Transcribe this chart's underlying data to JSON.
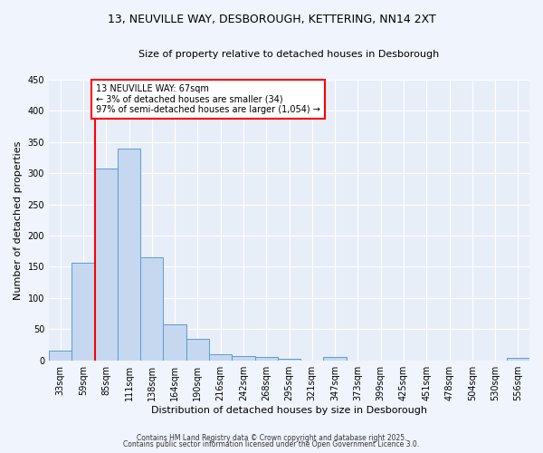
{
  "title_line1": "13, NEUVILLE WAY, DESBOROUGH, KETTERING, NN14 2XT",
  "title_line2": "Size of property relative to detached houses in Desborough",
  "xlabel": "Distribution of detached houses by size in Desborough",
  "ylabel": "Number of detached properties",
  "categories": [
    "33sqm",
    "59sqm",
    "85sqm",
    "111sqm",
    "138sqm",
    "164sqm",
    "190sqm",
    "216sqm",
    "242sqm",
    "268sqm",
    "295sqm",
    "321sqm",
    "347sqm",
    "373sqm",
    "399sqm",
    "425sqm",
    "451sqm",
    "478sqm",
    "504sqm",
    "530sqm",
    "556sqm"
  ],
  "values": [
    15,
    157,
    308,
    340,
    165,
    57,
    35,
    10,
    7,
    5,
    3,
    0,
    5,
    0,
    0,
    0,
    0,
    0,
    0,
    0,
    4
  ],
  "bar_color": "#c5d8f0",
  "bar_edge_color": "#5b9bd5",
  "background_color": "#e8eef8",
  "fig_background_color": "#f0f4fc",
  "red_line_x": 1.5,
  "ylim": [
    0,
    450
  ],
  "yticks": [
    0,
    50,
    100,
    150,
    200,
    250,
    300,
    350,
    400,
    450
  ],
  "annotation_text": "13 NEUVILLE WAY: 67sqm\n← 3% of detached houses are smaller (34)\n97% of semi-detached houses are larger (1,054) →",
  "footnote1": "Contains HM Land Registry data © Crown copyright and database right 2025.",
  "footnote2": "Contains public sector information licensed under the Open Government Licence 3.0.",
  "title_fontsize": 9,
  "subtitle_fontsize": 8,
  "ylabel_fontsize": 8,
  "xlabel_fontsize": 8,
  "tick_fontsize": 7,
  "annotation_fontsize": 7,
  "footnote_fontsize": 5.5
}
